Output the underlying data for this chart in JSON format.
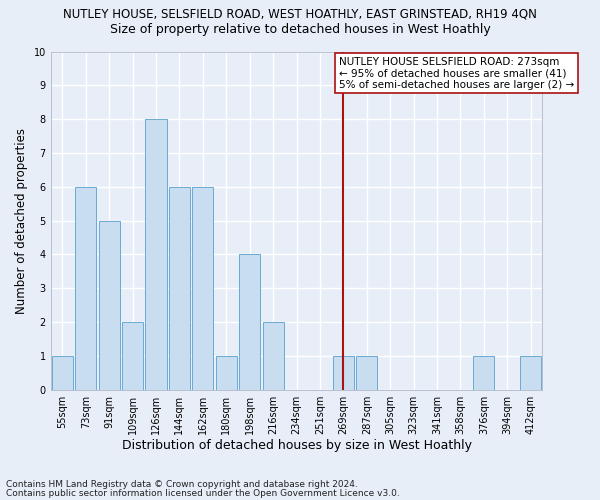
{
  "title_line1": "NUTLEY HOUSE, SELSFIELD ROAD, WEST HOATHLY, EAST GRINSTEAD, RH19 4QN",
  "title_line2": "Size of property relative to detached houses in West Hoathly",
  "xlabel": "Distribution of detached houses by size in West Hoathly",
  "ylabel": "Number of detached properties",
  "categories": [
    "55sqm",
    "73sqm",
    "91sqm",
    "109sqm",
    "126sqm",
    "144sqm",
    "162sqm",
    "180sqm",
    "198sqm",
    "216sqm",
    "234sqm",
    "251sqm",
    "269sqm",
    "287sqm",
    "305sqm",
    "323sqm",
    "341sqm",
    "358sqm",
    "376sqm",
    "394sqm",
    "412sqm"
  ],
  "values": [
    1,
    6,
    5,
    2,
    8,
    6,
    6,
    1,
    4,
    2,
    0,
    0,
    1,
    1,
    0,
    0,
    0,
    0,
    1,
    0,
    1
  ],
  "bar_color": "#c9ddf0",
  "bar_edge_color": "#6aaad4",
  "vline_x_index": 12,
  "vline_color": "#aa1111",
  "annotation_text": "NUTLEY HOUSE SELSFIELD ROAD: 273sqm\n← 95% of detached houses are smaller (41)\n5% of semi-detached houses are larger (2) →",
  "annotation_box_color": "#ffffff",
  "annotation_box_edge_color": "#aa1111",
  "ylim": [
    0,
    10
  ],
  "yticks": [
    0,
    1,
    2,
    3,
    4,
    5,
    6,
    7,
    8,
    9,
    10
  ],
  "footer_line1": "Contains HM Land Registry data © Crown copyright and database right 2024.",
  "footer_line2": "Contains public sector information licensed under the Open Government Licence v3.0.",
  "bg_color": "#e8eef8",
  "plot_bg_color": "#e8eef8",
  "grid_color": "#ffffff",
  "title_fontsize": 8.5,
  "subtitle_fontsize": 9,
  "ylabel_fontsize": 8.5,
  "xlabel_fontsize": 9,
  "tick_fontsize": 7,
  "annotation_fontsize": 7.5,
  "footer_fontsize": 6.5
}
